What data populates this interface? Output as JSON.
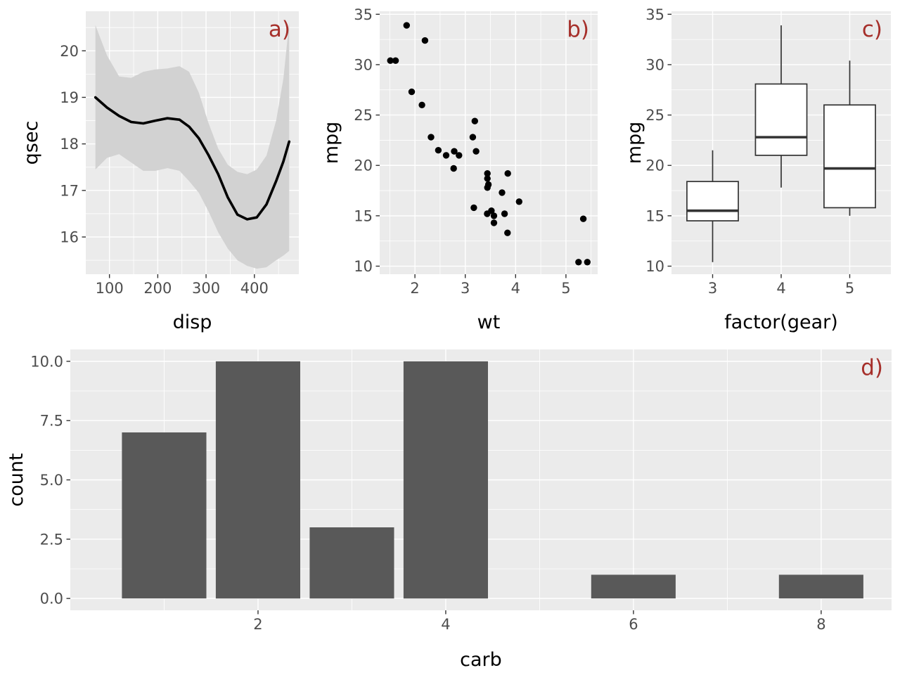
{
  "figure": {
    "background": "#FFFFFF",
    "panel_background": "#EBEBEB",
    "grid_color": "#FFFFFF",
    "tick_mark_color": "#333333",
    "tick_label_color": "#4D4D4D",
    "axis_title_color": "#000000",
    "tag_color": "#A62F2A",
    "bar_fill": "#595959",
    "point_color": "#000000",
    "smooth_line_color": "#000000",
    "ribbon_color": "#D2D2D2",
    "box_stroke": "#333333",
    "box_fill": "#FFFFFF"
  },
  "chart_data": [
    {
      "id": "a",
      "tag": "a)",
      "type": "line",
      "subtype": "loess-smooth-with-ribbon",
      "xlabel": "disp",
      "ylabel": "qsec",
      "xlim": [
        51,
        492
      ],
      "ylim": [
        15.2,
        20.85
      ],
      "xticks": [
        100,
        200,
        300,
        400
      ],
      "xtick_labels": [
        "100",
        "200",
        "300",
        "400"
      ],
      "yticks": [
        16,
        17,
        18,
        19,
        20
      ],
      "ytick_labels": [
        "16",
        "17",
        "18",
        "19",
        "20"
      ],
      "xminor": [
        150,
        250,
        350,
        450
      ],
      "yminor": [
        15.5,
        16.5,
        17.5,
        18.5,
        19.5,
        20.5
      ],
      "line": {
        "x": [
          71,
          95,
          120,
          145,
          170,
          195,
          220,
          245,
          265,
          285,
          305,
          325,
          345,
          365,
          385,
          405,
          425,
          445,
          460,
          472
        ],
        "y": [
          19.0,
          18.78,
          18.6,
          18.47,
          18.44,
          18.5,
          18.55,
          18.52,
          18.37,
          18.12,
          17.76,
          17.35,
          16.85,
          16.48,
          16.38,
          16.42,
          16.7,
          17.2,
          17.62,
          18.05
        ]
      },
      "ribbon": {
        "x": [
          71,
          95,
          120,
          145,
          170,
          195,
          220,
          245,
          265,
          285,
          305,
          325,
          345,
          365,
          385,
          405,
          425,
          445,
          460,
          472
        ],
        "upper": [
          20.55,
          19.9,
          19.45,
          19.42,
          19.55,
          19.6,
          19.62,
          19.67,
          19.55,
          19.1,
          18.45,
          17.9,
          17.55,
          17.4,
          17.35,
          17.45,
          17.75,
          18.5,
          19.4,
          20.6
        ],
        "lower": [
          17.45,
          17.7,
          17.78,
          17.6,
          17.42,
          17.42,
          17.48,
          17.42,
          17.2,
          16.95,
          16.55,
          16.1,
          15.75,
          15.5,
          15.38,
          15.32,
          15.35,
          15.5,
          15.6,
          15.7
        ]
      }
    },
    {
      "id": "b",
      "tag": "b)",
      "type": "scatter",
      "xlabel": "wt",
      "ylabel": "mpg",
      "xlim": [
        1.3,
        5.63
      ],
      "ylim": [
        9.2,
        35.3
      ],
      "xticks": [
        2,
        3,
        4,
        5
      ],
      "xtick_labels": [
        "2",
        "3",
        "4",
        "5"
      ],
      "yticks": [
        10,
        15,
        20,
        25,
        30,
        35
      ],
      "ytick_labels": [
        "10",
        "15",
        "20",
        "25",
        "30",
        "35"
      ],
      "xminor": [
        1.5,
        2.5,
        3.5,
        4.5,
        5.5
      ],
      "yminor": [
        12.5,
        17.5,
        22.5,
        27.5,
        32.5
      ],
      "points": [
        [
          2.62,
          21.0
        ],
        [
          2.875,
          21.0
        ],
        [
          2.32,
          22.8
        ],
        [
          3.215,
          21.4
        ],
        [
          3.44,
          18.7
        ],
        [
          3.46,
          18.1
        ],
        [
          3.57,
          14.3
        ],
        [
          3.19,
          24.4
        ],
        [
          3.15,
          22.8
        ],
        [
          3.44,
          19.2
        ],
        [
          3.44,
          17.8
        ],
        [
          4.07,
          16.4
        ],
        [
          3.73,
          17.3
        ],
        [
          3.78,
          15.2
        ],
        [
          5.25,
          10.4
        ],
        [
          5.424,
          10.4
        ],
        [
          5.345,
          14.7
        ],
        [
          2.2,
          32.4
        ],
        [
          1.615,
          30.4
        ],
        [
          1.835,
          33.9
        ],
        [
          2.465,
          21.5
        ],
        [
          3.52,
          15.5
        ],
        [
          3.435,
          15.2
        ],
        [
          3.84,
          13.3
        ],
        [
          3.845,
          19.2
        ],
        [
          1.935,
          27.3
        ],
        [
          2.14,
          26.0
        ],
        [
          1.513,
          30.4
        ],
        [
          3.17,
          15.8
        ],
        [
          2.77,
          19.7
        ],
        [
          3.57,
          15.0
        ],
        [
          2.78,
          21.4
        ]
      ]
    },
    {
      "id": "c",
      "tag": "c)",
      "type": "box",
      "xlabel": "factor(gear)",
      "ylabel": "mpg",
      "categories": [
        "3",
        "4",
        "5"
      ],
      "xlim": [
        0.4,
        3.6
      ],
      "ylim": [
        9.2,
        35.3
      ],
      "yticks": [
        10,
        15,
        20,
        25,
        30,
        35
      ],
      "ytick_labels": [
        "10",
        "15",
        "20",
        "25",
        "30",
        "35"
      ],
      "yminor": [
        12.5,
        17.5,
        22.5,
        27.5,
        32.5
      ],
      "box_width": 0.75,
      "boxes": [
        {
          "category": "3",
          "whisker_low": 10.4,
          "q1": 14.5,
          "median": 15.5,
          "q3": 18.4,
          "whisker_high": 21.5
        },
        {
          "category": "4",
          "whisker_low": 17.8,
          "q1": 21.0,
          "median": 22.8,
          "q3": 28.08,
          "whisker_high": 33.9
        },
        {
          "category": "5",
          "whisker_low": 15.0,
          "q1": 15.8,
          "median": 19.7,
          "q3": 26.0,
          "whisker_high": 30.4
        }
      ]
    },
    {
      "id": "d",
      "tag": "d)",
      "type": "bar",
      "xlabel": "carb",
      "ylabel": "count",
      "xlim": [
        0.0,
        8.75
      ],
      "ylim": [
        -0.5,
        10.5
      ],
      "xticks": [
        2,
        4,
        6,
        8
      ],
      "xtick_labels": [
        "2",
        "4",
        "6",
        "8"
      ],
      "yticks": [
        0,
        2.5,
        5,
        7.5,
        10
      ],
      "ytick_labels": [
        "0.0",
        "2.5",
        "5.0",
        "7.5",
        "10.0"
      ],
      "xminor": [
        1,
        3,
        5,
        7
      ],
      "yminor": [
        1.25,
        3.75,
        6.25,
        8.75
      ],
      "bar_width": 0.9,
      "categories": [
        1,
        2,
        3,
        4,
        6,
        8
      ],
      "values": [
        7,
        10,
        3,
        10,
        1,
        1
      ]
    }
  ]
}
